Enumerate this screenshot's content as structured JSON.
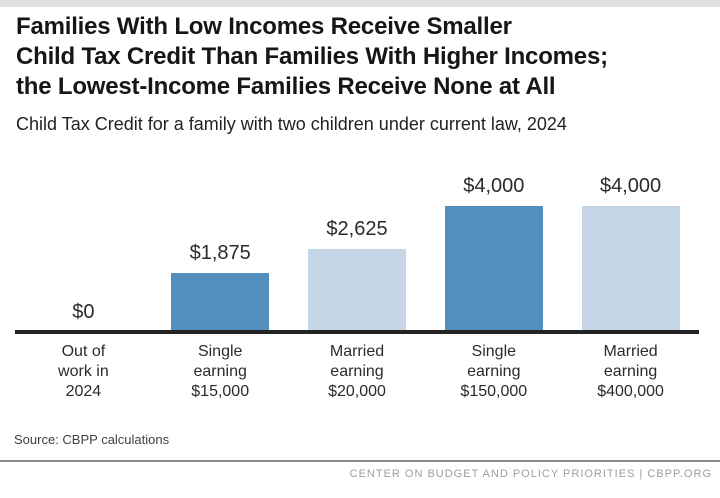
{
  "header": {
    "title": "Families With Low Incomes Receive Smaller\nChild Tax Credit Than Families With Higher Incomes;\nthe Lowest-Income Families Receive None at All",
    "subtitle": "Child Tax Credit for a family with two children under current law, 2024"
  },
  "chart_data": {
    "type": "bar",
    "title": "Families With Low Incomes Receive Smaller Child Tax Credit Than Families With Higher Incomes; the Lowest-Income Families Receive None at All",
    "subtitle": "Child Tax Credit for a family with two children under current law, 2024",
    "categories": [
      "Out of work in 2024",
      "Single earning $15,000",
      "Married earning $20,000",
      "Single earning $150,000",
      "Married earning $400,000"
    ],
    "categories_multiline": [
      "Out of\nwork in\n2024",
      "Single\nearning\n$15,000",
      "Married\nearning\n$20,000",
      "Single\nearning\n$150,000",
      "Married\nearning\n$400,000"
    ],
    "values": [
      0,
      1875,
      2625,
      4000,
      4000
    ],
    "value_labels": [
      "$0",
      "$1,875",
      "$2,625",
      "$4,000",
      "$4,000"
    ],
    "bar_colors": [
      "none",
      "#548ebc",
      "#c5d7e6",
      "#548ebc",
      "#c5d7e6"
    ],
    "ylim": [
      0,
      4000
    ],
    "grid": false,
    "legend": null,
    "xlabel": "",
    "ylabel": ""
  },
  "footer": {
    "source": "Source: CBPP calculations",
    "org_line": "CENTER ON BUDGET AND POLICY PRIORITIES | CBPP.ORG"
  },
  "colors": {
    "bar_dark": "#548ebc",
    "bar_light": "#c5d7e6",
    "axis": "#232323",
    "top_strip": "#dfdfdf",
    "footer_rule": "#8b8b8b",
    "footer_text": "#9e9e9e"
  }
}
